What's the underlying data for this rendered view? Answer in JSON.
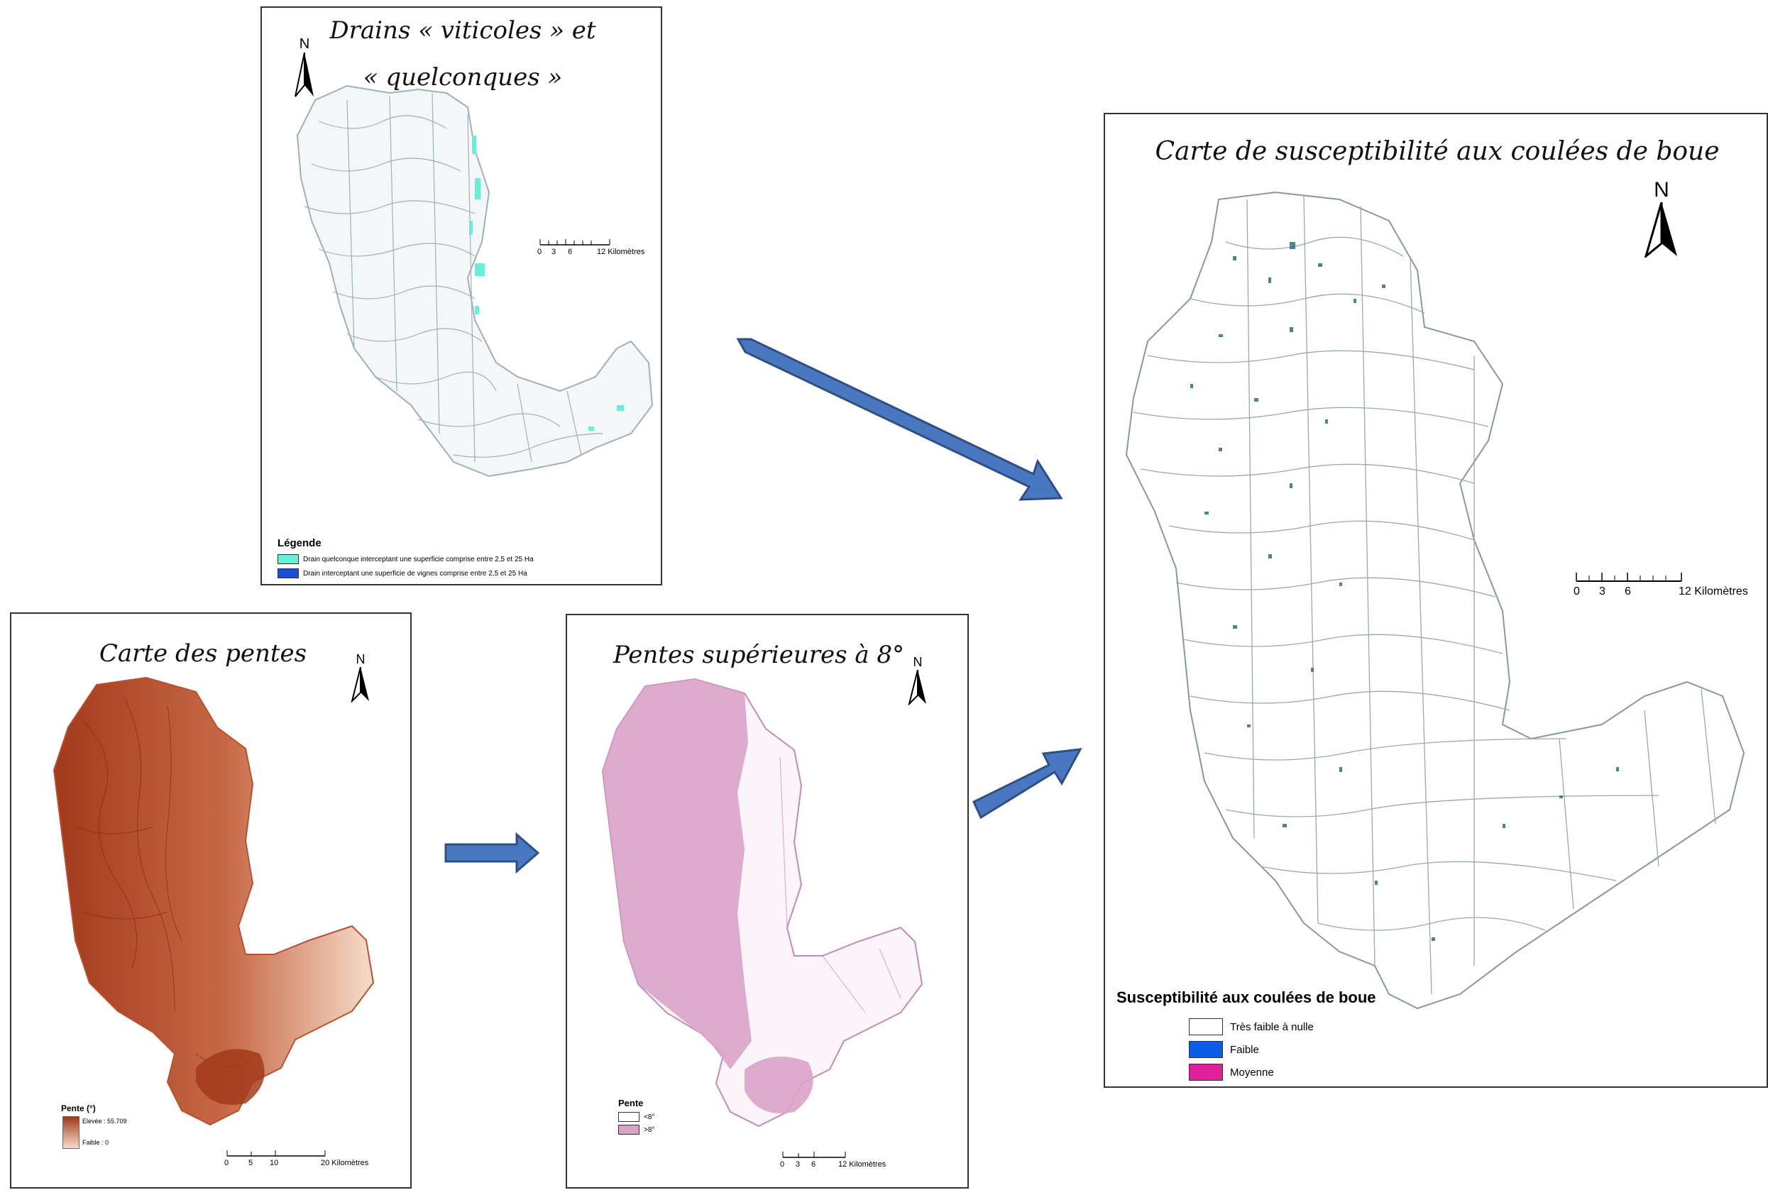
{
  "panel_drains": {
    "title_line1": "Drains « viticoles » et",
    "title_line2": "« quelconques »",
    "north": "N",
    "scale": {
      "ticks": [
        "0",
        "3",
        "6",
        "12 Kilomètres"
      ]
    },
    "legend": {
      "title": "Légende",
      "items": [
        {
          "label": "Drain quelconque interceptant une superficie comprise entre 2,5 et 25 Ha",
          "color": "#66f0d8"
        },
        {
          "label": "Drain interceptant une superficie de vignes comprise entre 2,5 et 25 Ha",
          "color": "#1a4fd6"
        }
      ]
    }
  },
  "panel_pentes": {
    "title": "Carte des pentes",
    "north": "N",
    "legend": {
      "title": "Pente (°)",
      "high_label": "Elevée : 55.709",
      "low_label": "Faible : 0",
      "gradient": [
        "#a2391a",
        "#f6dccb"
      ]
    },
    "scale": {
      "ticks": [
        "0",
        "5",
        "10",
        "20 Kilomètres"
      ]
    }
  },
  "panel_pentes8": {
    "title": "Pentes supérieures à 8°",
    "north": "N",
    "legend": {
      "title": "Pente",
      "items": [
        {
          "label": "<8°",
          "color": "#ffffff"
        },
        {
          "label": ">8°",
          "color": "#d9a3c8"
        }
      ]
    },
    "scale": {
      "ticks": [
        "0",
        "3",
        "6",
        "12 Kilomètres"
      ]
    }
  },
  "panel_susceptibilite": {
    "title": "Carte de susceptibilité aux coulées de boue",
    "north": "N",
    "scale": {
      "ticks": [
        "0",
        "3",
        "6",
        "12 Kilomètres"
      ]
    },
    "legend": {
      "title": "Susceptibilité aux coulées de boue",
      "items": [
        {
          "label": "Très faible à nulle",
          "color": "#ffffff"
        },
        {
          "label": "Faible",
          "color": "#0a5ce6"
        },
        {
          "label": "Moyenne",
          "color": "#e0209a"
        }
      ]
    }
  },
  "colors": {
    "arrow_fill": "#4a78c0",
    "arrow_stroke": "#2d4f86",
    "slope_dark": "#a2391a",
    "slope_light": "#f6dccb",
    "pink": "#d9a3c8",
    "drain_line": "#9fb0b8",
    "drain_cyan": "#66f0d8"
  }
}
